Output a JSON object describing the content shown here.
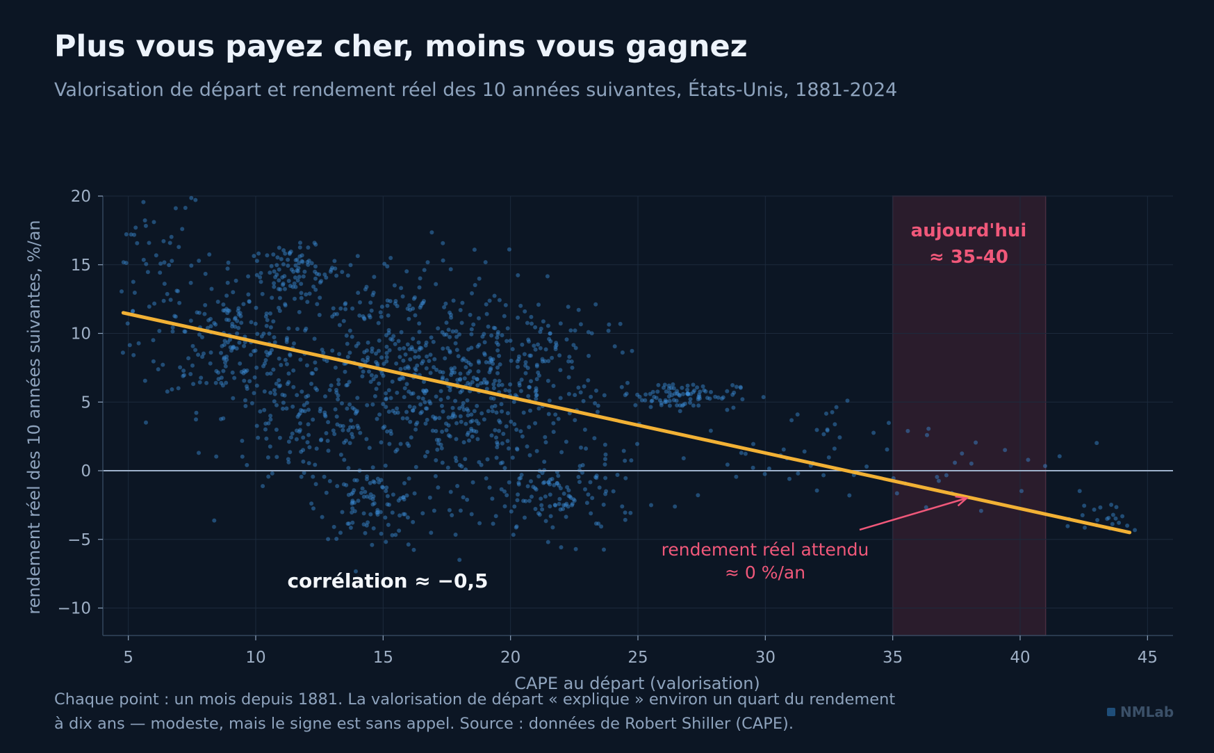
{
  "header": {
    "title": "Plus vous payez cher, moins vous gagnez",
    "subtitle": "Valorisation de départ et rendement réel des 10 années suivantes, États-Unis, 1881-2024"
  },
  "footer": {
    "line1": "Chaque point : un mois depuis 1881. La valorisation de départ « explique » environ un quart du rendement",
    "line2": "à dix ans — modeste, mais le signe est sans appel. Source : données de Robert Shiller (CAPE).",
    "brand": "NMLab"
  },
  "colors": {
    "background": "#0c1624",
    "points": "#3b8fd9",
    "trend": "#f2b135",
    "highlight": "#f0587a",
    "zero_line": "#9fb2cc",
    "band_fill": "#2a1c2c"
  },
  "chart_data": {
    "type": "scatter",
    "title": "",
    "xlabel": "CAPE au départ (valorisation)",
    "ylabel": "rendement réel des 10 années suivantes, %/an",
    "xlim": [
      4,
      46
    ],
    "ylim": [
      -12,
      20
    ],
    "xticks": [
      5,
      10,
      15,
      20,
      25,
      30,
      35,
      40,
      45
    ],
    "yticks": [
      -10,
      -5,
      0,
      5,
      10,
      15,
      20
    ],
    "xtick_labels": [
      "5",
      "10",
      "15",
      "20",
      "25",
      "30",
      "35",
      "40",
      "45"
    ],
    "ytick_labels": [
      "−10",
      "−5",
      "0",
      "5",
      "10",
      "15",
      "20"
    ],
    "grid": true,
    "zero_line": 0,
    "clusters": [
      {
        "cx": 6,
        "cy": 14,
        "sx": 1,
        "sy": 4,
        "n": 70
      },
      {
        "cx": 9,
        "cy": 9.5,
        "sx": 1.3,
        "sy": 2.5,
        "n": 170
      },
      {
        "cx": 11.5,
        "cy": 14.5,
        "sx": 0.9,
        "sy": 0.9,
        "n": 90
      },
      {
        "cx": 12,
        "cy": 4,
        "sx": 1.6,
        "sy": 3,
        "n": 150
      },
      {
        "cx": 14.5,
        "cy": -2.5,
        "sx": 1,
        "sy": 1.2,
        "n": 90
      },
      {
        "cx": 15.5,
        "cy": 8,
        "sx": 2.2,
        "sy": 4,
        "n": 330
      },
      {
        "cx": 19,
        "cy": 4.5,
        "sx": 2.2,
        "sy": 3.5,
        "n": 320
      },
      {
        "cx": 22,
        "cy": -2,
        "sx": 1.5,
        "sy": 1.5,
        "n": 110
      },
      {
        "cx": 21,
        "cy": 9,
        "sx": 1.5,
        "sy": 2,
        "n": 80
      },
      {
        "cx": 26.5,
        "cy": 5.5,
        "sx": 1.2,
        "sy": 0.5,
        "n": 100
      },
      {
        "cx": 30,
        "cy": 1,
        "sx": 1.8,
        "sy": 1.5,
        "n": 25
      },
      {
        "cx": 33,
        "cy": 2,
        "sx": 1.8,
        "sy": 1.8,
        "n": 18
      },
      {
        "cx": 38,
        "cy": -1,
        "sx": 2.5,
        "sy": 1.5,
        "n": 22
      },
      {
        "cx": 43,
        "cy": -3.5,
        "sx": 1,
        "sy": 0.6,
        "n": 22
      }
    ],
    "trend_line": {
      "x": [
        4.8,
        44.3
      ],
      "y": [
        11.5,
        -4.5
      ]
    },
    "highlight_band": {
      "x_from": 35,
      "x_to": 41,
      "label_line1": "aujourd'hui",
      "label_line2": "≈ 35-40"
    },
    "annotations": {
      "correlation": "corrélation ≈ −0,5",
      "arrow_line1": "rendement réel attendu",
      "arrow_line2": "≈ 0 %/an",
      "arrow_from": [
        33.7,
        -4.3
      ],
      "arrow_to": [
        37.9,
        -2.0
      ]
    }
  }
}
